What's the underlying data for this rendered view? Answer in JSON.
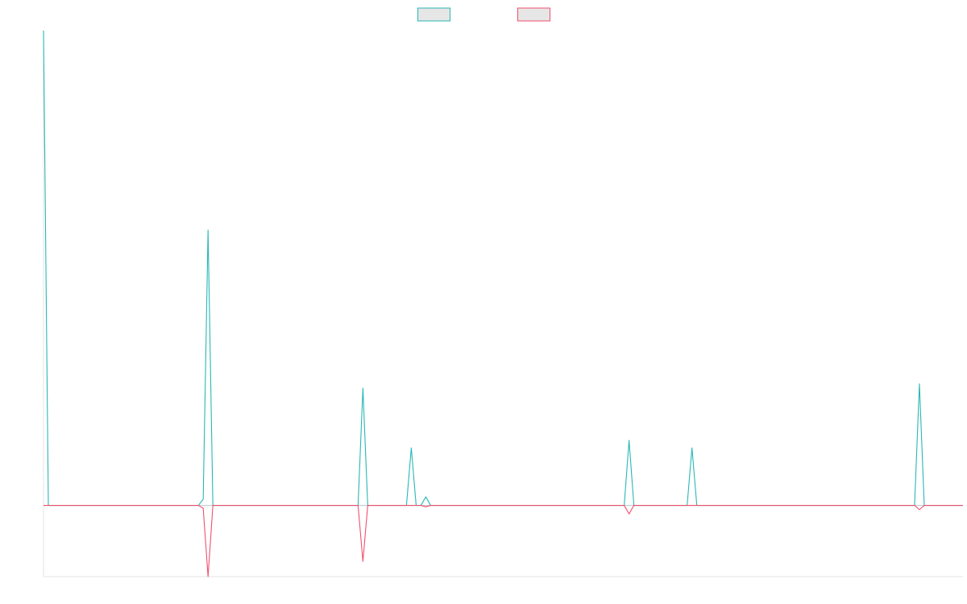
{
  "chart_data": {
    "type": "line",
    "title": "",
    "xlabel": "",
    "ylabel": "",
    "legend_position": "top-center",
    "grid": false,
    "x": [
      0,
      1,
      2,
      3,
      4,
      5,
      6,
      7,
      8,
      9,
      10,
      11,
      12,
      13,
      14,
      15,
      16,
      17,
      18,
      19,
      20,
      21,
      22,
      23,
      24,
      25,
      26,
      27,
      28,
      29,
      30,
      31,
      32,
      33,
      34,
      35,
      36,
      37,
      38,
      39,
      40,
      41,
      42,
      43,
      44,
      45,
      46,
      47,
      48,
      49,
      50,
      51,
      52,
      53,
      54,
      55,
      56,
      57,
      58,
      59,
      60,
      61,
      62,
      63,
      64,
      65,
      66,
      67,
      68,
      69,
      70,
      71,
      72,
      73,
      74,
      75,
      76,
      77,
      78,
      79,
      80,
      81,
      82,
      83,
      84,
      85,
      86,
      87,
      88,
      89,
      90,
      91,
      92,
      93,
      94,
      95,
      96,
      97,
      98,
      99,
      100,
      101,
      102,
      103,
      104,
      105,
      106,
      107,
      108,
      109,
      110,
      111,
      112,
      113,
      114,
      115,
      116,
      117,
      118,
      119,
      120,
      121,
      122,
      123,
      124,
      125,
      126,
      127,
      128,
      129,
      130,
      131,
      132,
      133,
      134,
      135,
      136,
      137,
      138,
      139,
      140,
      141,
      142,
      143,
      144,
      145,
      146,
      147,
      148,
      149,
      150,
      151,
      152,
      153,
      154,
      155,
      156,
      157,
      158,
      159,
      160,
      161,
      162,
      163,
      164,
      165,
      166,
      167,
      168,
      169,
      170,
      171,
      172,
      173,
      174,
      175,
      176,
      177,
      178,
      179,
      180,
      181,
      182,
      183,
      184,
      185,
      186,
      187,
      188,
      189,
      190
    ],
    "xlim": [
      0,
      190
    ],
    "ylim": [
      -0.15,
      1.0
    ],
    "series": [
      {
        "color": "#2ab7b7",
        "points": [
          [
            0,
            1.0
          ],
          [
            1,
            0.0
          ],
          [
            32,
            0.0
          ],
          [
            33,
            0.013
          ],
          [
            34,
            0.58
          ],
          [
            35,
            0.0
          ],
          [
            65,
            0.0
          ],
          [
            66,
            0.247
          ],
          [
            67,
            0.0
          ],
          [
            75,
            0.0
          ],
          [
            76,
            0.121
          ],
          [
            77,
            0.0
          ],
          [
            78,
            0.0
          ],
          [
            79,
            0.018
          ],
          [
            80,
            0.0
          ],
          [
            120,
            0.0
          ],
          [
            121,
            0.137
          ],
          [
            122,
            0.0
          ],
          [
            133,
            0.0
          ],
          [
            134,
            0.121
          ],
          [
            135,
            0.0
          ],
          [
            180,
            0.0
          ],
          [
            181,
            0.256
          ],
          [
            182,
            0.0
          ],
          [
            190,
            0.0
          ]
        ]
      },
      {
        "color": "#f0506e",
        "points": [
          [
            0,
            0.0
          ],
          [
            32,
            0.0
          ],
          [
            33,
            -0.006
          ],
          [
            34,
            -0.15
          ],
          [
            35,
            0.0
          ],
          [
            65,
            0.0
          ],
          [
            66,
            -0.118
          ],
          [
            67,
            0.0
          ],
          [
            78,
            0.0
          ],
          [
            79,
            -0.003
          ],
          [
            80,
            0.0
          ],
          [
            120,
            0.0
          ],
          [
            121,
            -0.018
          ],
          [
            122,
            0.0
          ],
          [
            180,
            0.0
          ],
          [
            181,
            -0.009
          ],
          [
            182,
            0.0
          ],
          [
            190,
            0.0
          ]
        ]
      }
    ]
  }
}
